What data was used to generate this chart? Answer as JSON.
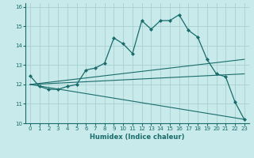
{
  "xlabel": "Humidex (Indice chaleur)",
  "background_color": "#c8eaea",
  "grid_color": "#a8d0d0",
  "line_color": "#1a6b6b",
  "xlim": [
    -0.5,
    23.5
  ],
  "ylim": [
    10,
    16.2
  ],
  "yticks": [
    10,
    11,
    12,
    13,
    14,
    15,
    16
  ],
  "xticks": [
    0,
    1,
    2,
    3,
    4,
    5,
    6,
    7,
    8,
    9,
    10,
    11,
    12,
    13,
    14,
    15,
    16,
    17,
    18,
    19,
    20,
    21,
    22,
    23
  ],
  "main_x": [
    0,
    1,
    2,
    3,
    4,
    5,
    6,
    7,
    8,
    9,
    10,
    11,
    12,
    13,
    14,
    15,
    16,
    17,
    18,
    19,
    20,
    21,
    22,
    23
  ],
  "main_y": [
    12.45,
    11.9,
    11.75,
    11.75,
    11.9,
    12.0,
    12.75,
    12.85,
    13.1,
    14.4,
    14.1,
    13.6,
    15.3,
    14.85,
    15.3,
    15.3,
    15.6,
    14.8,
    14.45,
    13.3,
    12.55,
    12.4,
    11.1,
    10.2
  ],
  "line1_x": [
    0,
    23
  ],
  "line1_y": [
    12.0,
    13.3
  ],
  "line2_x": [
    0,
    23
  ],
  "line2_y": [
    12.0,
    12.55
  ],
  "line3_x": [
    0,
    23
  ],
  "line3_y": [
    12.0,
    10.2
  ]
}
